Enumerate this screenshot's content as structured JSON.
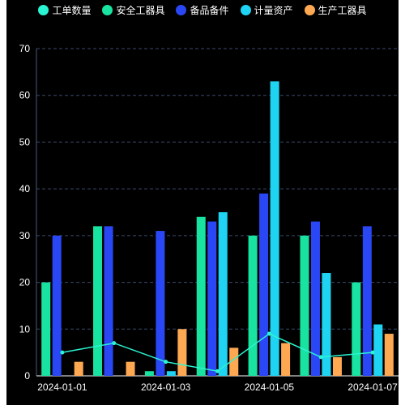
{
  "chart_data": {
    "type": "bar",
    "categories": [
      "2024-01-01",
      "2024-01-02",
      "2024-01-03",
      "2024-01-04",
      "2024-01-05",
      "2024-01-06",
      "2024-01-07"
    ],
    "x_tick_labels": [
      "2024-01-01",
      "2024-01-03",
      "2024-01-05",
      "2024-01-07"
    ],
    "ylim": [
      0,
      70
    ],
    "y_ticks": [
      0,
      10,
      20,
      30,
      40,
      50,
      60,
      70
    ],
    "grid": true,
    "legend_position": "top",
    "series": [
      {
        "name": "工单数量",
        "type": "line",
        "color": "#2af5d2",
        "values": [
          5,
          7,
          3,
          1,
          9,
          4,
          5
        ]
      },
      {
        "name": "安全工器具",
        "type": "bar",
        "color": "#19e3a0",
        "values": [
          20,
          32,
          1,
          34,
          30,
          30,
          20
        ]
      },
      {
        "name": "备品备件",
        "type": "bar",
        "color": "#2a47f5",
        "values": [
          30,
          32,
          31,
          33,
          39,
          33,
          32
        ]
      },
      {
        "name": "计量资产",
        "type": "bar",
        "color": "#1fd3f2",
        "values": [
          0,
          0,
          1,
          35,
          63,
          22,
          11
        ]
      },
      {
        "name": "生产工器具",
        "type": "bar",
        "color": "#ffa852",
        "values": [
          3,
          3,
          10,
          6,
          7,
          4,
          9
        ]
      }
    ]
  }
}
